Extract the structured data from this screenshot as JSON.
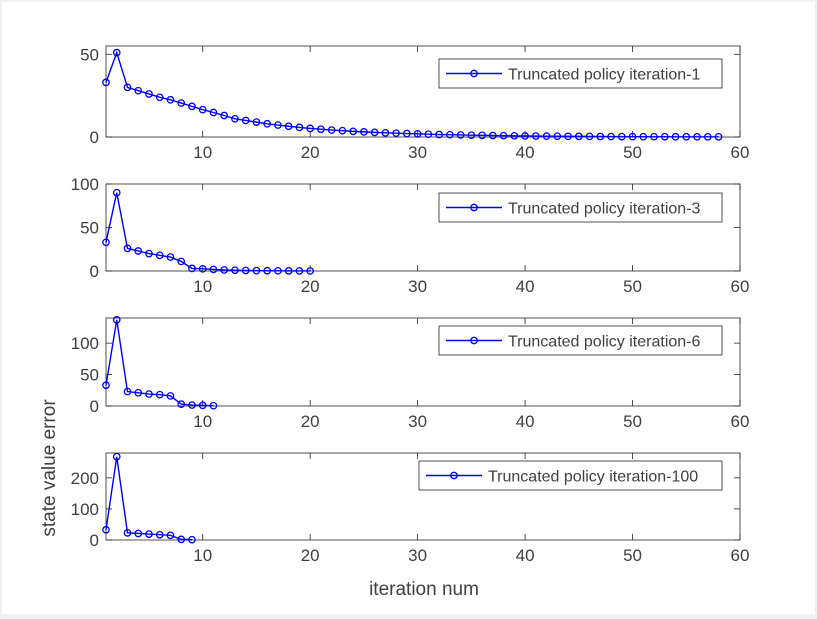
{
  "figure": {
    "ylabel": "state value error",
    "xlabel": "iteration num"
  },
  "chart_data": [
    {
      "type": "line",
      "legend": "Truncated policy iteration-1",
      "legend_placement": "top-right",
      "x": [
        1,
        2,
        3,
        4,
        5,
        6,
        7,
        8,
        9,
        10,
        11,
        12,
        13,
        14,
        15,
        16,
        17,
        18,
        19,
        20,
        21,
        22,
        23,
        24,
        25,
        26,
        27,
        28,
        29,
        30,
        31,
        32,
        33,
        34,
        35,
        36,
        37,
        38,
        39,
        40,
        41,
        42,
        43,
        44,
        45,
        46,
        47,
        48,
        49,
        50,
        51,
        52,
        53,
        54,
        55,
        56,
        57,
        58
      ],
      "values": [
        33,
        51,
        30,
        28,
        26,
        24,
        22.5,
        20.5,
        18.5,
        16.5,
        14.8,
        13,
        11,
        10,
        9,
        8,
        7.2,
        6.5,
        5.8,
        5.2,
        4.7,
        4.2,
        3.8,
        3.4,
        3.1,
        2.8,
        2.5,
        2.3,
        2.1,
        1.9,
        1.7,
        1.5,
        1.4,
        1.25,
        1.1,
        1,
        0.9,
        0.8,
        0.72,
        0.65,
        0.58,
        0.52,
        0.47,
        0.42,
        0.38,
        0.34,
        0.3,
        0.27,
        0.24,
        0.22,
        0.2,
        0.18,
        0.16,
        0.14,
        0.13,
        0.12,
        0.1,
        0.09
      ],
      "xlim": [
        1,
        60
      ],
      "ylim": [
        0,
        55
      ],
      "xticks": [
        10,
        20,
        30,
        40,
        50,
        60
      ],
      "yticks": [
        0,
        50
      ],
      "color": "#0000ff"
    },
    {
      "type": "line",
      "legend": "Truncated policy iteration-3",
      "legend_placement": "top-right",
      "x": [
        1,
        2,
        3,
        4,
        5,
        6,
        7,
        8,
        9,
        10,
        11,
        12,
        13,
        14,
        15,
        16,
        17,
        18,
        19,
        20
      ],
      "values": [
        33,
        90,
        26,
        23,
        20,
        18,
        16,
        11,
        3,
        2.5,
        1.8,
        1.2,
        0.9,
        0.6,
        0.4,
        0.3,
        0.2,
        0.15,
        0.1,
        0.05
      ],
      "xlim": [
        1,
        60
      ],
      "ylim": [
        0,
        100
      ],
      "xticks": [
        10,
        20,
        30,
        40,
        50,
        60
      ],
      "yticks": [
        0,
        50,
        100
      ],
      "color": "#0000ff"
    },
    {
      "type": "line",
      "legend": "Truncated policy iteration-6",
      "legend_placement": "top-right",
      "x": [
        1,
        2,
        3,
        4,
        5,
        6,
        7,
        8,
        9,
        10,
        11
      ],
      "values": [
        33,
        137,
        23,
        21,
        19,
        18,
        16,
        3,
        1.5,
        1,
        0.5
      ],
      "xlim": [
        1,
        60
      ],
      "ylim": [
        0,
        140
      ],
      "xticks": [
        10,
        20,
        30,
        40,
        50,
        60
      ],
      "yticks": [
        0,
        50,
        100
      ],
      "color": "#0000ff"
    },
    {
      "type": "line",
      "legend": "Truncated policy iteration-100",
      "legend_placement": "top-right",
      "x": [
        1,
        2,
        3,
        4,
        5,
        6,
        7,
        8,
        9
      ],
      "values": [
        33,
        268,
        23,
        21,
        19,
        17,
        15,
        2,
        1
      ],
      "xlim": [
        1,
        60
      ],
      "ylim": [
        0,
        280
      ],
      "xticks": [
        10,
        20,
        30,
        40,
        50,
        60
      ],
      "yticks": [
        0,
        100,
        200
      ],
      "color": "#0000ff"
    }
  ]
}
